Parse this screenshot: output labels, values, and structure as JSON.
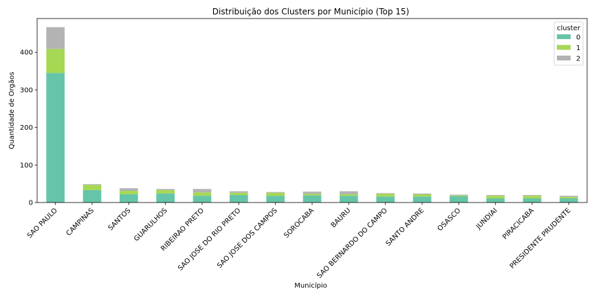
{
  "chart_data": {
    "type": "bar",
    "stacked": true,
    "title": "Distribuição dos Clusters por Município (Top 15)",
    "xlabel": "Município",
    "ylabel": "Quantidade de Orgãos",
    "ylim": [
      0,
      490
    ],
    "yticks": [
      0,
      100,
      200,
      300,
      400
    ],
    "grid": false,
    "legend": {
      "title": "cluster",
      "position": "top-right"
    },
    "categories": [
      "SAO PAULO",
      "CAMPINAS",
      "SANTOS",
      "GUARULHOS",
      "RIBEIRAO PRETO",
      "SAO JOSE DO RIO PRETO",
      "SAO JOSE DOS CAMPOS",
      "SOROCABA",
      "BAURU",
      "SAO BERNARDO DO CAMPO",
      "SANTO ANDRE",
      "OSASCO",
      "JUNDIAI",
      "PIRACICABA",
      "PRESIDENTE PRUDENTE"
    ],
    "series": [
      {
        "name": "0",
        "color": "#66c5a8",
        "values": [
          345,
          33,
          22,
          24,
          18,
          20,
          18,
          19,
          18,
          16,
          16,
          17,
          11,
          11,
          11
        ]
      },
      {
        "name": "1",
        "color": "#a6d854",
        "values": [
          64,
          14,
          9,
          9,
          9,
          6,
          8,
          4,
          4,
          7,
          6,
          2,
          7,
          7,
          4
        ]
      },
      {
        "name": "2",
        "color": "#b3b3b3",
        "values": [
          58,
          2,
          7,
          3,
          9,
          4,
          2,
          6,
          8,
          2,
          2,
          2,
          2,
          2,
          3
        ]
      }
    ]
  }
}
